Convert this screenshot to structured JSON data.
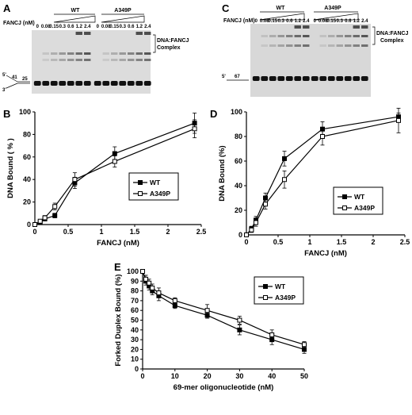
{
  "panels": {
    "A": {
      "label": "A",
      "groups": [
        "WT",
        "A349P"
      ],
      "conc_label": "FANCJ (nM)",
      "lanes": [
        "0",
        "0.08",
        "0.15",
        "0.3",
        "0.6",
        "1.2",
        "2.4"
      ],
      "complex_label_1": "DNA:FANCJ",
      "complex_label_2": "Complex",
      "sub_top": "41",
      "sub_bot": "25",
      "end5": "5'",
      "end3": "3'"
    },
    "C": {
      "label": "C",
      "groups": [
        "WT",
        "A349P"
      ],
      "conc_label": "FANCJ (nM)",
      "lanes": [
        "0",
        "0.08",
        "0.15",
        "0.3",
        "0.6",
        "1.2",
        "2.4"
      ],
      "complex_label_1": "DNA:FANCJ",
      "complex_label_2": "Complex",
      "sub_len": "67",
      "end5": "5'"
    },
    "B": {
      "label": "B"
    },
    "D": {
      "label": "D"
    },
    "E": {
      "label": "E"
    }
  },
  "chart_data": [
    {
      "panel": "B",
      "type": "line",
      "xlabel": "FANCJ (nM)",
      "ylabel": "DNA Bound ( % )",
      "xlim": [
        0,
        2.5
      ],
      "ylim": [
        0,
        100
      ],
      "xticks": [
        "0",
        "0.5",
        "1",
        "1.5",
        "2",
        "2.5"
      ],
      "yticks": [
        "0",
        "20",
        "40",
        "60",
        "80",
        "100"
      ],
      "legend_position": "center-right",
      "series": [
        {
          "name": "WT",
          "marker": "filled-square",
          "x": [
            0,
            0.08,
            0.15,
            0.3,
            0.6,
            1.2,
            2.4
          ],
          "y": [
            0,
            2,
            5,
            8,
            37,
            63,
            90
          ],
          "err": [
            0,
            1,
            1,
            2,
            5,
            6,
            9
          ]
        },
        {
          "name": "A349P",
          "marker": "open-square",
          "x": [
            0,
            0.08,
            0.15,
            0.3,
            0.6,
            1.2,
            2.4
          ],
          "y": [
            0,
            3,
            6,
            16,
            40,
            56,
            85
          ],
          "err": [
            0,
            1,
            2,
            3,
            6,
            5,
            8
          ]
        }
      ]
    },
    {
      "panel": "D",
      "type": "line",
      "xlabel": "FANCJ (nM)",
      "ylabel": "DNA Bound (%)",
      "xlim": [
        0,
        2.5
      ],
      "ylim": [
        0,
        100
      ],
      "xticks": [
        "0",
        "0.5",
        "1",
        "1.5",
        "2",
        "2.5"
      ],
      "yticks": [
        "0",
        "20",
        "40",
        "60",
        "80",
        "100"
      ],
      "legend_position": "center-right",
      "series": [
        {
          "name": "WT",
          "marker": "filled-square",
          "x": [
            0,
            0.08,
            0.15,
            0.3,
            0.6,
            1.2,
            2.4
          ],
          "y": [
            0,
            5,
            12,
            30,
            62,
            86,
            96
          ],
          "err": [
            0,
            2,
            3,
            4,
            6,
            6,
            3
          ]
        },
        {
          "name": "A349P",
          "marker": "open-square",
          "x": [
            0,
            0.08,
            0.15,
            0.3,
            0.6,
            1.2,
            2.4
          ],
          "y": [
            0,
            4,
            10,
            25,
            45,
            80,
            93
          ],
          "err": [
            0,
            2,
            3,
            4,
            7,
            7,
            10
          ]
        }
      ]
    },
    {
      "panel": "E",
      "type": "line",
      "xlabel": "69-mer oligonucleotide (nM)",
      "ylabel": "Forked Duplex Bound (%)",
      "xlim": [
        0,
        50
      ],
      "ylim": [
        0,
        100
      ],
      "xticks": [
        "0",
        "10",
        "20",
        "30",
        "40",
        "50"
      ],
      "yticks": [
        "0",
        "10",
        "20",
        "30",
        "40",
        "50",
        "60",
        "70",
        "80",
        "90",
        "100"
      ],
      "legend_position": "top-right",
      "series": [
        {
          "name": "WT",
          "marker": "filled-square",
          "x": [
            0,
            1,
            2,
            3,
            5,
            10,
            20,
            30,
            40,
            50
          ],
          "y": [
            100,
            90,
            85,
            80,
            75,
            65,
            55,
            40,
            30,
            20
          ],
          "err": [
            1,
            4,
            4,
            4,
            5,
            3,
            3,
            5,
            5,
            4
          ]
        },
        {
          "name": "A349P",
          "marker": "open-square",
          "x": [
            0,
            1,
            2,
            3,
            5,
            10,
            20,
            30,
            40,
            50
          ],
          "y": [
            100,
            92,
            88,
            83,
            78,
            70,
            60,
            50,
            35,
            25
          ],
          "err": [
            1,
            4,
            4,
            4,
            5,
            3,
            6,
            4,
            5,
            3
          ]
        }
      ]
    }
  ]
}
